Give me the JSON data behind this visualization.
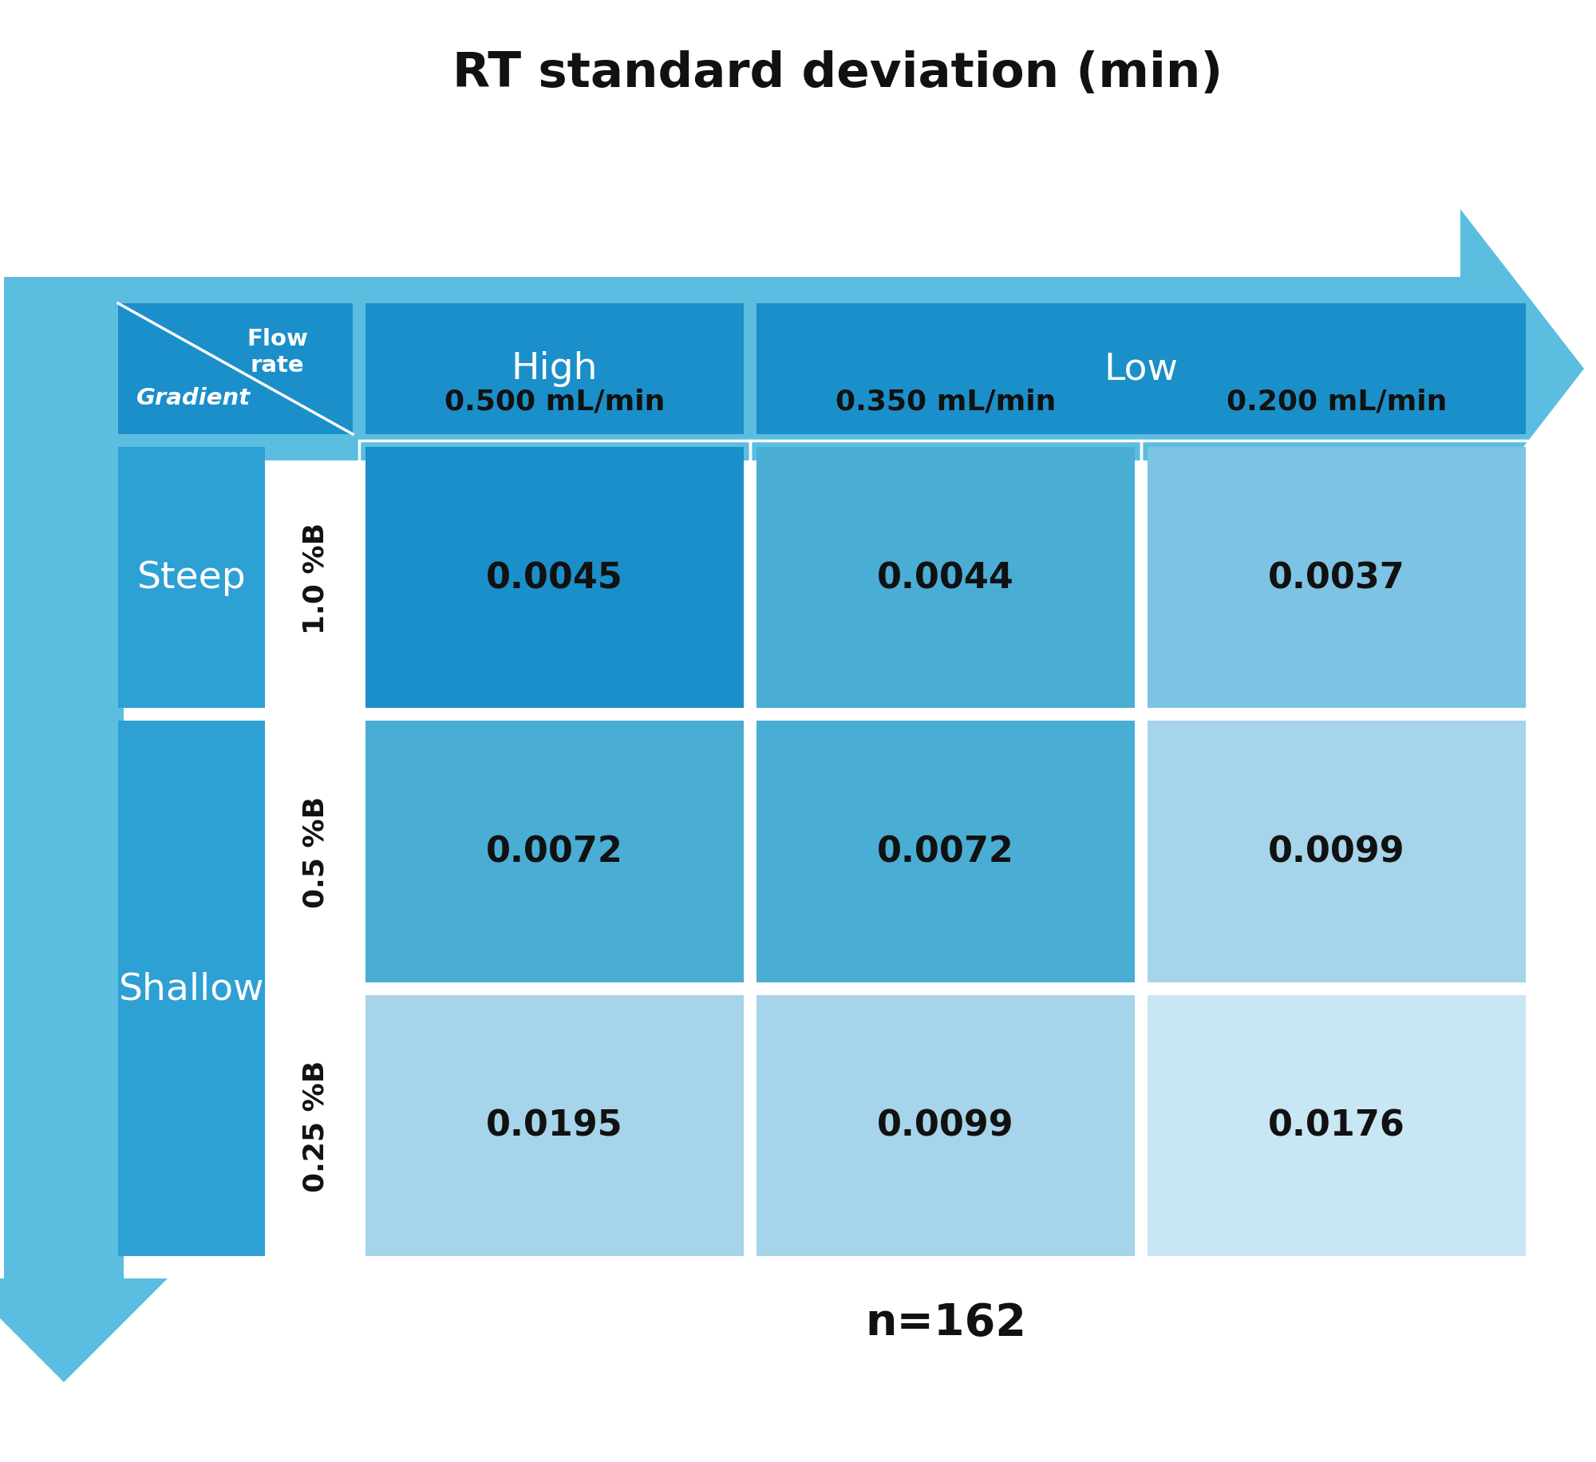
{
  "title": "RT standard deviation (min)",
  "title_fontsize": 44,
  "n_label": "n=162",
  "n_label_fontsize": 40,
  "cell_values": [
    [
      "0.0045",
      "0.0044",
      "0.0037"
    ],
    [
      "0.0072",
      "0.0072",
      "0.0099"
    ],
    [
      "0.0195",
      "0.0099",
      "0.0176"
    ]
  ],
  "col_labels": [
    "0.500 mL/min",
    "0.350 mL/min",
    "0.200 mL/min"
  ],
  "row_labels": [
    "1.0 %B",
    "0.5 %B",
    "0.25 %B"
  ],
  "gradient_row_labels": [
    "Steep",
    "Shallow"
  ],
  "flow_rate_col_labels": [
    "High",
    "Low"
  ],
  "header_corner_text_top": "Flow\nrate",
  "header_corner_text_bottom": "Gradient",
  "cell_colors": [
    [
      "#1b8fc9",
      "#4aadd4",
      "#7dc3e3"
    ],
    [
      "#4aadd4",
      "#4aadd4",
      "#a6d4ea"
    ],
    [
      "#a6d4ea",
      "#a6d4ea",
      "#c8e6f4"
    ]
  ],
  "header_blue": "#1b8fc9",
  "side_blue": "#2da0d4",
  "arrow_color": "#5bbde0",
  "bg_color": "#ffffff",
  "cell_text_color": "#111111",
  "header_text_color": "#ffffff",
  "value_fontsize": 32,
  "header_fontsize": 34,
  "sublabel_fontsize": 26,
  "rotated_label_fontsize": 26
}
